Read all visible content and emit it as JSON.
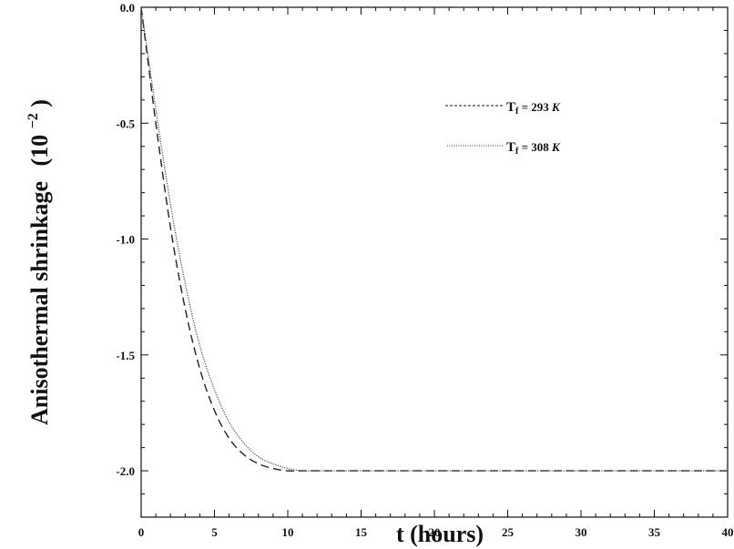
{
  "chart_data": {
    "type": "line",
    "xlabel": "t (hours)",
    "ylabel_main": "Anisothermal shrinkage",
    "ylabel_unit_base": "(10",
    "ylabel_unit_exp": "−2",
    "ylabel_unit_close": ")",
    "xlim": [
      0,
      40
    ],
    "ylim": [
      -2.2,
      0.0
    ],
    "x_ticks": [
      "0",
      "5",
      "10",
      "15",
      "20",
      "25",
      "30",
      "35",
      "40"
    ],
    "x_tick_values": [
      0,
      5,
      10,
      15,
      20,
      25,
      30,
      35,
      40
    ],
    "y_ticks": [
      "0.0",
      "-0.5",
      "-1.0",
      "-1.5",
      "-2.0"
    ],
    "y_tick_values": [
      0.0,
      -0.5,
      -1.0,
      -1.5,
      -2.0
    ],
    "grid": false,
    "legend_position": "top-right",
    "series": [
      {
        "name": "T",
        "sub": "f",
        "name_rest": " = 293 ",
        "unit": "K",
        "style": "dashed",
        "x": [
          0,
          0.5,
          1,
          2,
          3,
          4,
          5,
          6,
          7,
          8,
          9,
          10,
          11,
          12,
          14,
          16,
          20,
          25,
          30,
          35,
          40
        ],
        "y": [
          0.0,
          -0.25,
          -0.5,
          -0.95,
          -1.3,
          -1.56,
          -1.74,
          -1.86,
          -1.93,
          -1.97,
          -1.99,
          -2.0,
          -2.0,
          -2.0,
          -2.0,
          -2.0,
          -2.0,
          -2.0,
          -2.0,
          -2.0,
          -2.0
        ]
      },
      {
        "name": "T",
        "sub": "f",
        "name_rest": " = 308 ",
        "unit": "K",
        "style": "dotted",
        "x": [
          0,
          0.5,
          1,
          2,
          3,
          4,
          5,
          6,
          7,
          8,
          9,
          10,
          11,
          12,
          14,
          16,
          20,
          25,
          30,
          35,
          40
        ],
        "y": [
          0.0,
          -0.22,
          -0.44,
          -0.85,
          -1.19,
          -1.46,
          -1.65,
          -1.79,
          -1.88,
          -1.94,
          -1.97,
          -1.99,
          -2.0,
          -2.0,
          -2.0,
          -2.0,
          -2.0,
          -2.0,
          -2.0,
          -2.0,
          -2.0
        ]
      }
    ]
  }
}
